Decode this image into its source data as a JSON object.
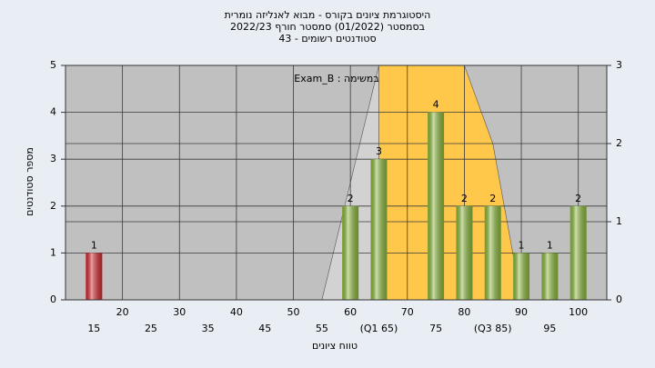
{
  "chart_data": {
    "type": "bar",
    "title": [
      "היסטוגרמת ציונים בקורס - מבוא לאנליזה נומרית",
      "בסמסטר  (01/2022)  סמסטר חורף 2022/23",
      "סטודנטים רשומים - 43"
    ],
    "annotation": "במשימה : Exam_B",
    "x_label": "טווח ציונים",
    "y_label": "מספר סטודנטים",
    "categories": [
      "15",
      "20",
      "25",
      "30",
      "35",
      "40",
      "45",
      "50",
      "55",
      "60",
      "(Q1 65)",
      "70",
      "75",
      "80",
      "(Q3 85)",
      "90",
      "95",
      "100"
    ],
    "values": [
      1,
      0,
      0,
      0,
      0,
      0,
      0,
      0,
      0,
      2,
      3,
      0,
      4,
      2,
      2,
      1,
      1,
      2
    ],
    "colors": [
      "#d8282e",
      "#8dbb3c",
      "#8dbb3c",
      "#8dbb3c",
      "#8dbb3c",
      "#8dbb3c",
      "#8dbb3c",
      "#8dbb3c",
      "#8dbb3c",
      "#8dbb3c",
      "#8dbb3c",
      "#8dbb3c",
      "#8dbb3c",
      "#8dbb3c",
      "#8dbb3c",
      "#8dbb3c",
      "#8dbb3c",
      "#8dbb3c"
    ],
    "ylim": [
      0,
      5
    ],
    "yticks": [
      0,
      1,
      2,
      3,
      4,
      5
    ],
    "y2lim": [
      0,
      3
    ],
    "y2ticks": [
      0,
      1,
      2,
      3
    ],
    "areas": [
      {
        "axis": "y2",
        "color": "#d2d2d2",
        "x": [
          8,
          10
        ],
        "values": [
          0,
          3
        ]
      },
      {
        "axis": "y2",
        "color": "#ffc84a",
        "x": [
          10,
          13,
          14,
          15
        ],
        "values": [
          3,
          3,
          2,
          0
        ]
      }
    ],
    "grid": true
  }
}
